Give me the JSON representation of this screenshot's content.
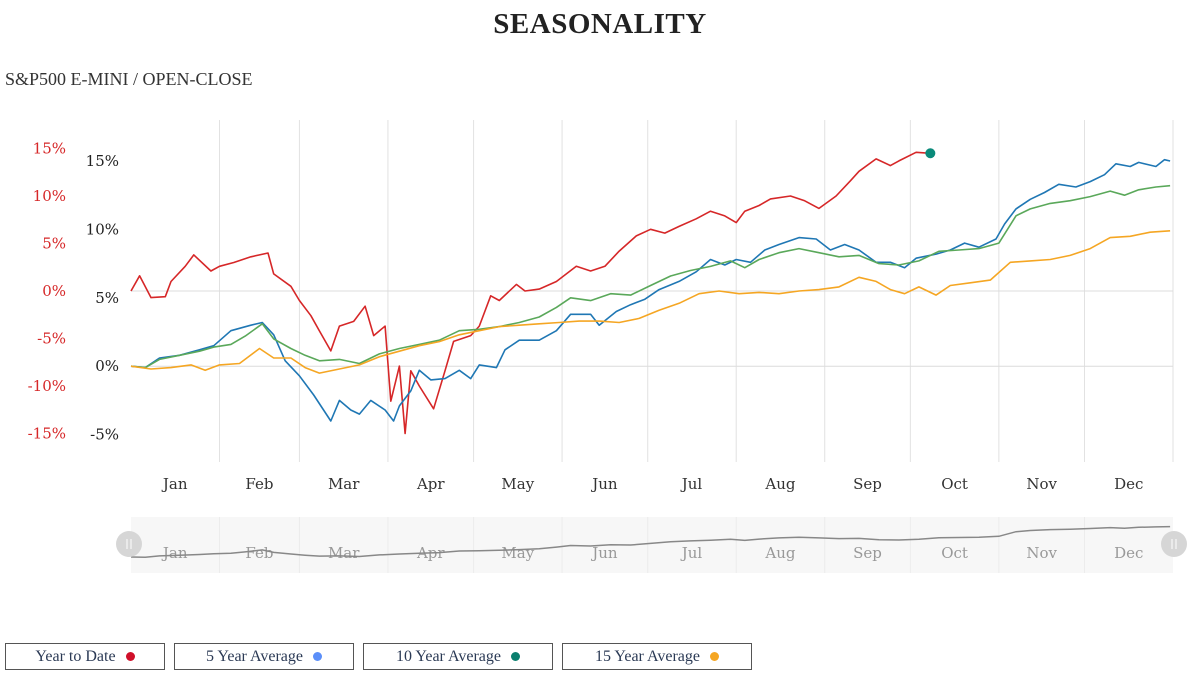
{
  "title": "SEASONALITY",
  "subtitle": "S&P500 E-MINI / OPEN-CLOSE",
  "legend": [
    {
      "label": "Year to Date",
      "color": "#d0102a"
    },
    {
      "label": "5 Year Average",
      "color": "#5b8ff9"
    },
    {
      "label": "10 Year Average",
      "color": "#0a7f6e"
    },
    {
      "label": "15 Year Average",
      "color": "#f5a623"
    }
  ],
  "chart_data": {
    "type": "line",
    "title": "SEASONALITY",
    "subtitle": "S&P500 E-MINI / OPEN-CLOSE",
    "x_tick_labels": [
      "Jan",
      "Feb",
      "Mar",
      "Apr",
      "May",
      "Jun",
      "Jul",
      "Aug",
      "Sep",
      "Oct",
      "Nov",
      "Dec"
    ],
    "grid": "vertical month lines",
    "legend_position": "bottom-left",
    "axes": {
      "ytd": {
        "ticks": [
          "15%",
          "10%",
          "5%",
          "0%",
          "-5%",
          "-10%",
          "-15%"
        ],
        "tick_values": [
          15,
          10,
          5,
          0,
          -5,
          -10,
          -15
        ],
        "ylim": [
          -18,
          18
        ],
        "color": "#d62728"
      },
      "averages": {
        "ticks": [
          "15%",
          "10%",
          "5%",
          "0%",
          "-5%"
        ],
        "tick_values": [
          15,
          10,
          5,
          0,
          -5
        ],
        "ylim": [
          -7,
          18
        ],
        "color": "#222222"
      }
    },
    "series": [
      {
        "name": "Year to Date",
        "axis": "ytd",
        "color": "#d62728",
        "end_marker_color": "#0a8a7a",
        "points": [
          [
            "01-01",
            0
          ],
          [
            "01-04",
            1.6
          ],
          [
            "01-08",
            -0.7
          ],
          [
            "01-13",
            -0.6
          ],
          [
            "01-15",
            1
          ],
          [
            "01-20",
            2.6
          ],
          [
            "01-23",
            3.8
          ],
          [
            "01-29",
            2.1
          ],
          [
            "02-01",
            2.6
          ],
          [
            "02-06",
            3
          ],
          [
            "02-12",
            3.6
          ],
          [
            "02-18",
            4
          ],
          [
            "02-20",
            1.8
          ],
          [
            "02-26",
            0.5
          ],
          [
            "03-01",
            -1
          ],
          [
            "03-05",
            -2.6
          ],
          [
            "03-08",
            -4.2
          ],
          [
            "03-12",
            -6.3
          ],
          [
            "03-15",
            -3.7
          ],
          [
            "03-20",
            -3.2
          ],
          [
            "03-24",
            -1.6
          ],
          [
            "03-27",
            -4.7
          ],
          [
            "03-31",
            -3.7
          ],
          [
            "04-02",
            -11.6
          ],
          [
            "04-05",
            -7.9
          ],
          [
            "04-07",
            -15
          ],
          [
            "04-09",
            -8.4
          ],
          [
            "04-12",
            -10
          ],
          [
            "04-17",
            -12.4
          ],
          [
            "04-21",
            -8.4
          ],
          [
            "04-24",
            -5.3
          ],
          [
            "04-30",
            -4.7
          ],
          [
            "05-03",
            -3.7
          ],
          [
            "05-07",
            -0.5
          ],
          [
            "05-10",
            -1
          ],
          [
            "05-16",
            0.7
          ],
          [
            "05-19",
            0
          ],
          [
            "05-24",
            0.2
          ],
          [
            "05-30",
            1
          ],
          [
            "06-06",
            2.6
          ],
          [
            "06-11",
            2.1
          ],
          [
            "06-16",
            2.6
          ],
          [
            "06-21",
            4.2
          ],
          [
            "06-27",
            5.8
          ],
          [
            "07-02",
            6.5
          ],
          [
            "07-07",
            6.1
          ],
          [
            "07-12",
            6.8
          ],
          [
            "07-18",
            7.6
          ],
          [
            "07-23",
            8.4
          ],
          [
            "07-28",
            7.9
          ],
          [
            "08-01",
            7.2
          ],
          [
            "08-04",
            8.4
          ],
          [
            "08-09",
            9
          ],
          [
            "08-13",
            9.7
          ],
          [
            "08-20",
            10
          ],
          [
            "08-25",
            9.5
          ],
          [
            "08-30",
            8.7
          ],
          [
            "09-05",
            10
          ],
          [
            "09-10",
            11.6
          ],
          [
            "09-13",
            12.6
          ],
          [
            "09-19",
            13.9
          ],
          [
            "09-24",
            13.2
          ],
          [
            "09-27",
            13.7
          ],
          [
            "10-03",
            14.6
          ],
          [
            "10-08",
            14.5
          ]
        ]
      },
      {
        "name": "5 Year Average",
        "axis": "averages",
        "color": "#1f77b4",
        "points": [
          [
            "01-01",
            0
          ],
          [
            "01-06",
            -0.1
          ],
          [
            "01-11",
            0.6
          ],
          [
            "01-18",
            0.8
          ],
          [
            "01-25",
            1.2
          ],
          [
            "01-30",
            1.5
          ],
          [
            "02-05",
            2.6
          ],
          [
            "02-12",
            3
          ],
          [
            "02-16",
            3.2
          ],
          [
            "02-20",
            2.3
          ],
          [
            "02-24",
            0.4
          ],
          [
            "03-01",
            -0.7
          ],
          [
            "03-06",
            -2.1
          ],
          [
            "03-12",
            -4
          ],
          [
            "03-15",
            -2.5
          ],
          [
            "03-19",
            -3.2
          ],
          [
            "03-22",
            -3.5
          ],
          [
            "03-26",
            -2.5
          ],
          [
            "03-31",
            -3.2
          ],
          [
            "04-03",
            -4
          ],
          [
            "04-05",
            -2.9
          ],
          [
            "04-09",
            -1.8
          ],
          [
            "04-12",
            -0.3
          ],
          [
            "04-16",
            -1
          ],
          [
            "04-21",
            -0.9
          ],
          [
            "04-26",
            -0.3
          ],
          [
            "04-30",
            -0.9
          ],
          [
            "05-03",
            0.1
          ],
          [
            "05-09",
            -0.1
          ],
          [
            "05-12",
            1.2
          ],
          [
            "05-17",
            1.9
          ],
          [
            "05-24",
            1.9
          ],
          [
            "05-30",
            2.6
          ],
          [
            "06-04",
            3.8
          ],
          [
            "06-11",
            3.8
          ],
          [
            "06-14",
            3
          ],
          [
            "06-20",
            4
          ],
          [
            "06-25",
            4.5
          ],
          [
            "06-30",
            4.9
          ],
          [
            "07-05",
            5.6
          ],
          [
            "07-12",
            6.2
          ],
          [
            "07-18",
            6.9
          ],
          [
            "07-23",
            7.8
          ],
          [
            "07-28",
            7.4
          ],
          [
            "08-01",
            7.8
          ],
          [
            "08-06",
            7.6
          ],
          [
            "08-11",
            8.5
          ],
          [
            "08-16",
            8.9
          ],
          [
            "08-23",
            9.4
          ],
          [
            "08-29",
            9.3
          ],
          [
            "09-03",
            8.5
          ],
          [
            "09-08",
            8.9
          ],
          [
            "09-13",
            8.5
          ],
          [
            "09-19",
            7.6
          ],
          [
            "09-24",
            7.6
          ],
          [
            "09-29",
            7.2
          ],
          [
            "10-03",
            7.9
          ],
          [
            "10-10",
            8.2
          ],
          [
            "10-15",
            8.5
          ],
          [
            "10-20",
            9
          ],
          [
            "10-25",
            8.7
          ],
          [
            "10-31",
            9.3
          ],
          [
            "11-03",
            10.4
          ],
          [
            "11-07",
            11.5
          ],
          [
            "11-12",
            12.2
          ],
          [
            "11-17",
            12.7
          ],
          [
            "11-22",
            13.3
          ],
          [
            "11-28",
            13.1
          ],
          [
            "12-03",
            13.5
          ],
          [
            "12-08",
            14
          ],
          [
            "12-12",
            14.8
          ],
          [
            "12-17",
            14.6
          ],
          [
            "12-20",
            14.9
          ],
          [
            "12-26",
            14.6
          ],
          [
            "12-29",
            15.1
          ],
          [
            "12-31",
            15
          ]
        ]
      },
      {
        "name": "10 Year Average",
        "axis": "averages",
        "color": "#5aa85a",
        "points": [
          [
            "01-01",
            0
          ],
          [
            "01-06",
            -0.1
          ],
          [
            "01-11",
            0.5
          ],
          [
            "01-18",
            0.8
          ],
          [
            "01-25",
            1.1
          ],
          [
            "01-30",
            1.4
          ],
          [
            "02-05",
            1.6
          ],
          [
            "02-10",
            2.2
          ],
          [
            "02-16",
            3.1
          ],
          [
            "02-20",
            2
          ],
          [
            "02-26",
            1.3
          ],
          [
            "03-03",
            0.8
          ],
          [
            "03-08",
            0.4
          ],
          [
            "03-15",
            0.5
          ],
          [
            "03-22",
            0.2
          ],
          [
            "03-29",
            0.9
          ],
          [
            "04-05",
            1.3
          ],
          [
            "04-12",
            1.6
          ],
          [
            "04-19",
            1.9
          ],
          [
            "04-26",
            2.6
          ],
          [
            "05-03",
            2.7
          ],
          [
            "05-10",
            2.9
          ],
          [
            "05-17",
            3.2
          ],
          [
            "05-24",
            3.6
          ],
          [
            "05-30",
            4.3
          ],
          [
            "06-04",
            5
          ],
          [
            "06-11",
            4.8
          ],
          [
            "06-18",
            5.3
          ],
          [
            "06-25",
            5.2
          ],
          [
            "07-02",
            5.9
          ],
          [
            "07-09",
            6.6
          ],
          [
            "07-16",
            7
          ],
          [
            "07-23",
            7.3
          ],
          [
            "07-30",
            7.7
          ],
          [
            "08-04",
            7.2
          ],
          [
            "08-09",
            7.8
          ],
          [
            "08-16",
            8.3
          ],
          [
            "08-23",
            8.6
          ],
          [
            "08-30",
            8.3
          ],
          [
            "09-06",
            8
          ],
          [
            "09-13",
            8.1
          ],
          [
            "09-20",
            7.5
          ],
          [
            "09-27",
            7.4
          ],
          [
            "10-04",
            7.7
          ],
          [
            "10-11",
            8.4
          ],
          [
            "10-18",
            8.5
          ],
          [
            "10-25",
            8.6
          ],
          [
            "11-01",
            9
          ],
          [
            "11-07",
            11
          ],
          [
            "11-12",
            11.5
          ],
          [
            "11-19",
            11.9
          ],
          [
            "11-26",
            12.1
          ],
          [
            "12-03",
            12.4
          ],
          [
            "12-10",
            12.8
          ],
          [
            "12-15",
            12.5
          ],
          [
            "12-20",
            12.9
          ],
          [
            "12-26",
            13.1
          ],
          [
            "12-31",
            13.2
          ]
        ]
      },
      {
        "name": "15 Year Average",
        "axis": "averages",
        "color": "#f5a623",
        "points": [
          [
            "01-01",
            0
          ],
          [
            "01-08",
            -0.2
          ],
          [
            "01-15",
            -0.1
          ],
          [
            "01-22",
            0.1
          ],
          [
            "01-27",
            -0.3
          ],
          [
            "02-01",
            0.1
          ],
          [
            "02-08",
            0.2
          ],
          [
            "02-15",
            1.3
          ],
          [
            "02-20",
            0.6
          ],
          [
            "02-26",
            0.6
          ],
          [
            "03-03",
            -0.1
          ],
          [
            "03-08",
            -0.5
          ],
          [
            "03-15",
            -0.2
          ],
          [
            "03-22",
            0.1
          ],
          [
            "03-29",
            0.7
          ],
          [
            "04-05",
            1.1
          ],
          [
            "04-12",
            1.5
          ],
          [
            "04-19",
            1.8
          ],
          [
            "04-26",
            2.3
          ],
          [
            "05-03",
            2.6
          ],
          [
            "05-10",
            2.9
          ],
          [
            "05-17",
            3
          ],
          [
            "05-24",
            3.1
          ],
          [
            "05-31",
            3.2
          ],
          [
            "06-07",
            3.3
          ],
          [
            "06-14",
            3.3
          ],
          [
            "06-21",
            3.2
          ],
          [
            "06-28",
            3.5
          ],
          [
            "07-05",
            4.1
          ],
          [
            "07-12",
            4.6
          ],
          [
            "07-19",
            5.3
          ],
          [
            "07-26",
            5.5
          ],
          [
            "08-02",
            5.3
          ],
          [
            "08-09",
            5.4
          ],
          [
            "08-16",
            5.3
          ],
          [
            "08-23",
            5.5
          ],
          [
            "08-30",
            5.6
          ],
          [
            "09-06",
            5.8
          ],
          [
            "09-13",
            6.5
          ],
          [
            "09-19",
            6.2
          ],
          [
            "09-24",
            5.6
          ],
          [
            "09-29",
            5.3
          ],
          [
            "10-04",
            5.8
          ],
          [
            "10-10",
            5.2
          ],
          [
            "10-15",
            5.9
          ],
          [
            "10-22",
            6.1
          ],
          [
            "10-29",
            6.3
          ],
          [
            "11-05",
            7.6
          ],
          [
            "11-12",
            7.7
          ],
          [
            "11-19",
            7.8
          ],
          [
            "11-26",
            8.1
          ],
          [
            "12-03",
            8.6
          ],
          [
            "12-10",
            9.4
          ],
          [
            "12-17",
            9.5
          ],
          [
            "12-24",
            9.8
          ],
          [
            "12-31",
            9.9
          ]
        ]
      }
    ],
    "navigator": {
      "series": "10 Year Average",
      "color": "#888888",
      "x_tick_labels": [
        "Jan",
        "Feb",
        "Mar",
        "Apr",
        "May",
        "Jun",
        "Jul",
        "Aug",
        "Sep",
        "Oct",
        "Nov",
        "Dec"
      ]
    }
  }
}
